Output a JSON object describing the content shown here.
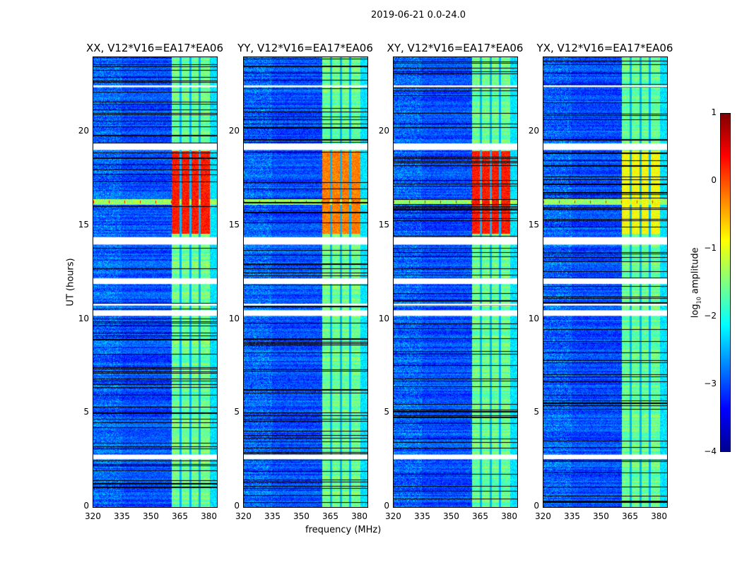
{
  "suptitle": "2019-06-21 0.0-24.0",
  "chart_data": {
    "type": "heatmap",
    "title": "2019-06-21 0.0-24.0",
    "xlabel": "frequency (MHz)",
    "ylabel": "UT (hours)",
    "xlim": [
      320,
      384
    ],
    "ylim": [
      0,
      24
    ],
    "xticks": [
      "320",
      "335",
      "350",
      "365",
      "380"
    ],
    "yticks": [
      "0",
      "5",
      "10",
      "15",
      "20"
    ],
    "panels": [
      {
        "title": "XX, V12*V16=EA17*EA06",
        "hot_level": 0.85
      },
      {
        "title": "YY, V12*V16=EA17*EA06",
        "hot_level": 0.75
      },
      {
        "title": "XY, V12*V16=EA17*EA06",
        "hot_level": 0.85
      },
      {
        "title": "YX, V12*V16=EA17*EA06",
        "hot_level": 0.62
      }
    ],
    "bright_band_mhz": [
      360.5,
      380
    ],
    "band_dark_lines_mhz": [
      365,
      370,
      375
    ],
    "rfi_time_ut": 16.3,
    "rfi_hot_interval_ut": [
      14.6,
      19
    ],
    "flagged_intervals_ut": [
      [
        2.55,
        2.8
      ],
      [
        10.2,
        10.5
      ],
      [
        10.75,
        10.85
      ],
      [
        11.9,
        12.2
      ],
      [
        14.0,
        14.4
      ],
      [
        19.05,
        19.4
      ],
      [
        22.4,
        22.5
      ]
    ],
    "colorbar": {
      "label": "log10 amplitude",
      "range": [
        -4,
        1
      ],
      "ticks": [
        "1",
        "0",
        "−1",
        "−2",
        "−3",
        "−4"
      ],
      "colormap": "jet"
    }
  }
}
